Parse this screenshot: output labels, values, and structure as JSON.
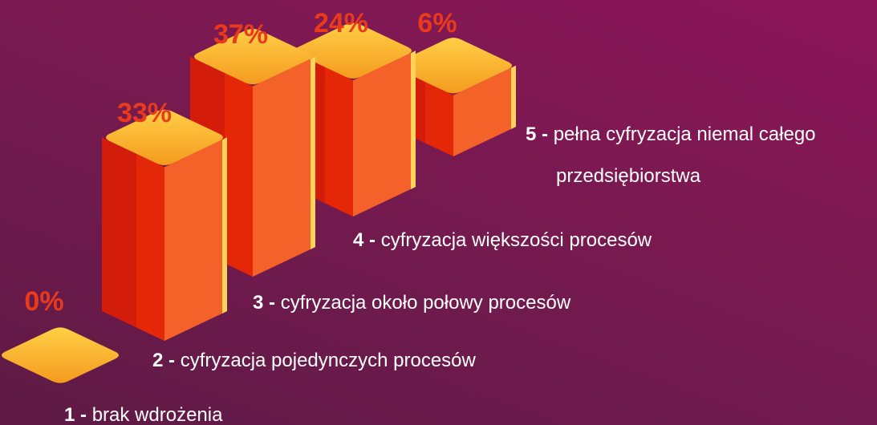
{
  "chart_data": {
    "type": "isometric-bar",
    "category_keys": [
      "1 -",
      "2 -",
      "3 -",
      "4 -",
      "5 -"
    ],
    "categories": [
      "brak wdrożenia",
      "cyfryzacja pojedynczych procesów",
      "cyfryzacja około połowy procesów",
      "cyfryzacja większości procesów",
      "pełna cyfryzacja niemal całego przedsiębiorstwa"
    ],
    "values": [
      0,
      33,
      37,
      24,
      6
    ],
    "value_labels": [
      "0%",
      "33%",
      "37%",
      "24%",
      "6%"
    ],
    "colors": {
      "top": "#fdb52f",
      "left": "#d41c0a",
      "right": "#f4622a",
      "edge": "#ffd35a",
      "label": "#ea3a1c"
    }
  }
}
